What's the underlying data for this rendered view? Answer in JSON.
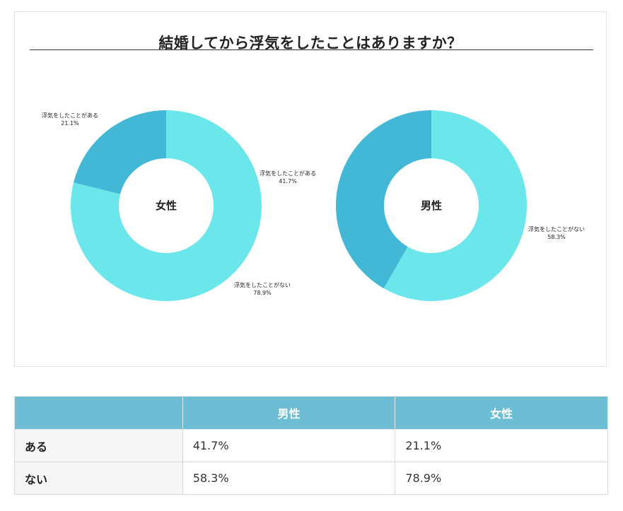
{
  "chart": {
    "title": "結婚してから浮気をしたことはありますか？"
  },
  "colors": {
    "dark": "#42b8d6",
    "light": "#6be6ea",
    "table_header": "#6dbdd4"
  },
  "chart_data": [
    {
      "type": "pie",
      "center_label": "女性",
      "slices": [
        {
          "label": "浮気をしたことがある",
          "value": 21.1,
          "value_text": "21.1%",
          "color": "#42b8d6"
        },
        {
          "label": "浮気をしたことがない",
          "value": 78.9,
          "value_text": "78.9%",
          "color": "#6be6ea"
        }
      ]
    },
    {
      "type": "pie",
      "center_label": "男性",
      "slices": [
        {
          "label": "浮気をしたことがある",
          "value": 41.7,
          "value_text": "41.7%",
          "color": "#42b8d6"
        },
        {
          "label": "浮気をしたことがない",
          "value": 58.3,
          "value_text": "58.3%",
          "color": "#6be6ea"
        }
      ]
    }
  ],
  "table": {
    "headers": [
      "",
      "男性",
      "女性"
    ],
    "rows": [
      {
        "label": "ある",
        "male": "41.7%",
        "female": "21.1%"
      },
      {
        "label": "ない",
        "male": "58.3%",
        "female": "78.9%"
      }
    ]
  }
}
